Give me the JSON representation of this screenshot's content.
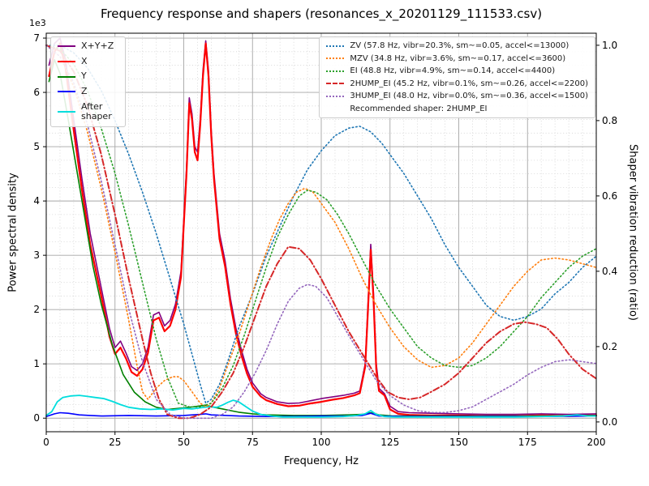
{
  "axes": {
    "x": {
      "label": "Frequency, Hz",
      "min": 0,
      "max": 200,
      "ticks": [
        0,
        25,
        50,
        75,
        100,
        125,
        150,
        175,
        200
      ],
      "minor_step": 5
    },
    "y_left": {
      "label": "Power spectral density",
      "offset_text": "1e3",
      "ticks": [
        0,
        1,
        2,
        3,
        4,
        5,
        6,
        7
      ],
      "range": [
        -0.25,
        7.09
      ]
    },
    "y_right": {
      "label": "Shaper vibration reduction (ratio)",
      "ticks": [
        "0.0",
        "0.2",
        "0.4",
        "0.6",
        "0.8",
        "1.0"
      ],
      "range": [
        -0.026,
        1.032
      ]
    }
  },
  "grid": {
    "major_color": "#a6a6a6",
    "minor_color": "#d2d2d2"
  },
  "chart_data": {
    "type": "line",
    "title": "Frequency response and shapers (resonances_x_20201129_111533.csv)",
    "xlabel": "Frequency, Hz",
    "ylabel": "Power spectral density",
    "ylabel_right": "Shaper vibration reduction (ratio)",
    "y_left_unit": "1e3",
    "x_range": [
      0,
      200
    ],
    "y_left_range": [
      0,
      7
    ],
    "y_right_range": [
      0,
      1
    ],
    "recommended": "Recommended shaper: 2HUMP_EI",
    "legend_position": {
      "data": "upper left",
      "shapers": "upper right"
    },
    "series": [
      {
        "label": "X+Y+Z",
        "color": "#800080",
        "style": "solid",
        "width": 1.6,
        "axis": "left",
        "x": [
          1,
          3,
          5,
          7,
          10,
          13,
          16,
          20,
          23,
          25,
          27,
          29,
          31,
          33,
          35,
          37,
          39,
          41,
          43,
          45,
          47,
          49,
          51,
          52,
          53,
          54,
          55,
          56,
          57,
          58,
          59,
          60,
          61,
          63,
          65,
          67,
          69,
          71,
          73,
          75,
          78,
          80,
          84,
          88,
          92,
          96,
          100,
          104,
          108,
          112,
          114,
          116,
          117,
          118,
          119,
          120,
          121,
          123,
          125,
          128,
          132,
          140,
          150,
          160,
          170,
          180,
          190,
          200
        ],
        "y": [
          6.5,
          6.9,
          7.0,
          6.6,
          5.5,
          4.4,
          3.4,
          2.4,
          1.65,
          1.3,
          1.42,
          1.2,
          0.95,
          0.88,
          1.0,
          1.3,
          1.9,
          1.95,
          1.7,
          1.8,
          2.1,
          2.7,
          4.6,
          5.9,
          5.6,
          5.0,
          4.9,
          5.5,
          6.4,
          6.95,
          6.4,
          5.3,
          4.5,
          3.4,
          2.9,
          2.2,
          1.65,
          1.25,
          0.9,
          0.65,
          0.45,
          0.38,
          0.3,
          0.27,
          0.28,
          0.32,
          0.36,
          0.39,
          0.42,
          0.46,
          0.5,
          1.0,
          2.1,
          3.2,
          2.3,
          1.0,
          0.55,
          0.45,
          0.22,
          0.12,
          0.1,
          0.09,
          0.08,
          0.07,
          0.07,
          0.08,
          0.07,
          0.08
        ]
      },
      {
        "label": "X",
        "color": "#ff0000",
        "style": "solid",
        "width": 2.2,
        "axis": "left",
        "x": [
          1,
          3,
          5,
          7,
          10,
          13,
          16,
          20,
          23,
          25,
          27,
          29,
          31,
          33,
          35,
          37,
          39,
          41,
          43,
          45,
          47,
          49,
          51,
          52,
          53,
          54,
          55,
          56,
          57,
          58,
          59,
          60,
          61,
          63,
          65,
          67,
          69,
          71,
          73,
          75,
          78,
          80,
          84,
          88,
          92,
          96,
          100,
          104,
          108,
          112,
          114,
          116,
          117,
          118,
          119,
          120,
          121,
          123,
          125,
          128,
          132,
          140,
          150,
          160,
          170,
          180,
          190,
          200
        ],
        "y": [
          6.3,
          6.75,
          6.9,
          6.45,
          5.3,
          4.2,
          3.2,
          2.25,
          1.5,
          1.18,
          1.3,
          1.1,
          0.85,
          0.78,
          0.9,
          1.2,
          1.8,
          1.85,
          1.6,
          1.7,
          2.0,
          2.6,
          4.5,
          5.8,
          5.5,
          4.9,
          4.75,
          5.4,
          6.3,
          6.9,
          6.3,
          5.2,
          4.4,
          3.3,
          2.8,
          2.1,
          1.55,
          1.15,
          0.82,
          0.58,
          0.4,
          0.33,
          0.26,
          0.22,
          0.23,
          0.27,
          0.3,
          0.34,
          0.37,
          0.42,
          0.46,
          0.95,
          2.0,
          3.1,
          2.2,
          0.9,
          0.5,
          0.42,
          0.16,
          0.08,
          0.06,
          0.05,
          0.05,
          0.04,
          0.04,
          0.05,
          0.04,
          0.05
        ]
      },
      {
        "label": "Y",
        "color": "#008000",
        "style": "solid",
        "width": 1.6,
        "axis": "left",
        "x": [
          1,
          3,
          5,
          8,
          11,
          14,
          17,
          20,
          24,
          28,
          32,
          36,
          40,
          44,
          48,
          52,
          55,
          58,
          61,
          64,
          67,
          70,
          75,
          80,
          90,
          100,
          110,
          115,
          118,
          121,
          126,
          135,
          150,
          165,
          180,
          200
        ],
        "y": [
          6.2,
          6.6,
          6.35,
          5.5,
          4.6,
          3.7,
          2.8,
          2.1,
          1.35,
          0.8,
          0.48,
          0.3,
          0.2,
          0.16,
          0.18,
          0.2,
          0.22,
          0.24,
          0.2,
          0.17,
          0.14,
          0.11,
          0.08,
          0.06,
          0.05,
          0.05,
          0.06,
          0.07,
          0.1,
          0.06,
          0.04,
          0.04,
          0.04,
          0.04,
          0.04,
          0.05
        ]
      },
      {
        "label": "Z",
        "color": "#0000ff",
        "style": "solid",
        "width": 1.6,
        "axis": "left",
        "x": [
          0,
          3,
          5,
          8,
          12,
          16,
          20,
          30,
          40,
          50,
          56,
          58,
          60,
          70,
          80,
          90,
          100,
          110,
          115,
          118,
          121,
          130,
          145,
          160,
          180,
          200
        ],
        "y": [
          0.03,
          0.08,
          0.1,
          0.09,
          0.06,
          0.05,
          0.04,
          0.05,
          0.04,
          0.05,
          0.07,
          0.08,
          0.06,
          0.04,
          0.03,
          0.03,
          0.04,
          0.04,
          0.05,
          0.09,
          0.04,
          0.03,
          0.03,
          0.03,
          0.03,
          0.04
        ]
      },
      {
        "label": "After shaper",
        "color": "#00dddd",
        "style": "solid",
        "width": 1.8,
        "axis": "left",
        "x": [
          0,
          2,
          4,
          6,
          9,
          12,
          15,
          18,
          21,
          24,
          27,
          30,
          34,
          38,
          42,
          46,
          50,
          53,
          56,
          59,
          62,
          64,
          66,
          68,
          70,
          72,
          75,
          78,
          82,
          86,
          92,
          100,
          108,
          113,
          116,
          118,
          120,
          123,
          127,
          132,
          140,
          150,
          160,
          170,
          180,
          188,
          193,
          197,
          200
        ],
        "y": [
          0.05,
          0.12,
          0.3,
          0.38,
          0.41,
          0.42,
          0.4,
          0.38,
          0.36,
          0.31,
          0.25,
          0.2,
          0.17,
          0.16,
          0.17,
          0.15,
          0.18,
          0.17,
          0.19,
          0.21,
          0.2,
          0.24,
          0.29,
          0.33,
          0.3,
          0.23,
          0.13,
          0.07,
          0.04,
          0.02,
          0.02,
          0.02,
          0.03,
          0.05,
          0.08,
          0.14,
          0.07,
          0.03,
          0.02,
          0.02,
          0.02,
          0.02,
          0.02,
          0.02,
          0.03,
          0.04,
          0.06,
          0.04,
          0.04
        ]
      },
      {
        "label": "ZV (57.8 Hz, vibr=20.3%, sm~=0.05, accel<=13000)",
        "color": "#1f77b4",
        "style": "dotted",
        "width": 1.6,
        "axis": "right",
        "x": [
          0,
          5,
          10,
          15,
          20,
          25,
          30,
          35,
          40,
          45,
          50,
          53,
          56,
          58,
          60,
          63,
          66,
          70,
          75,
          80,
          85,
          90,
          95,
          100,
          105,
          110,
          114,
          118,
          122,
          126,
          130,
          135,
          140,
          145,
          150,
          155,
          160,
          165,
          170,
          175,
          180,
          185,
          190,
          195,
          200
        ],
        "y": [
          1.0,
          1.0,
          0.98,
          0.94,
          0.88,
          0.8,
          0.71,
          0.61,
          0.5,
          0.38,
          0.26,
          0.18,
          0.1,
          0.05,
          0.06,
          0.1,
          0.16,
          0.25,
          0.34,
          0.44,
          0.52,
          0.6,
          0.67,
          0.72,
          0.76,
          0.78,
          0.785,
          0.77,
          0.74,
          0.7,
          0.66,
          0.6,
          0.54,
          0.47,
          0.41,
          0.36,
          0.31,
          0.28,
          0.27,
          0.28,
          0.3,
          0.34,
          0.37,
          0.41,
          0.44
        ]
      },
      {
        "label": "MZV (34.8 Hz, vibr=3.6%, sm~=0.17, accel<=3600)",
        "color": "#ff7f0e",
        "style": "dotted",
        "width": 1.6,
        "axis": "right",
        "x": [
          0,
          5,
          10,
          15,
          20,
          25,
          30,
          33,
          35,
          37,
          40,
          43,
          46,
          48,
          50,
          53,
          56,
          58,
          60,
          63,
          66,
          70,
          74,
          78,
          82,
          85,
          88,
          91,
          94,
          97,
          100,
          105,
          110,
          115,
          120,
          125,
          130,
          135,
          140,
          145,
          150,
          155,
          160,
          165,
          170,
          175,
          180,
          185,
          190,
          195,
          200
        ],
        "y": [
          1.0,
          0.97,
          0.89,
          0.77,
          0.62,
          0.45,
          0.27,
          0.15,
          0.08,
          0.06,
          0.09,
          0.11,
          0.12,
          0.12,
          0.11,
          0.08,
          0.05,
          0.04,
          0.05,
          0.09,
          0.15,
          0.23,
          0.32,
          0.41,
          0.49,
          0.54,
          0.58,
          0.61,
          0.62,
          0.61,
          0.58,
          0.53,
          0.46,
          0.38,
          0.31,
          0.25,
          0.2,
          0.165,
          0.145,
          0.15,
          0.17,
          0.21,
          0.26,
          0.31,
          0.36,
          0.4,
          0.43,
          0.435,
          0.43,
          0.42,
          0.41
        ]
      },
      {
        "label": "EI (48.8 Hz, vibr=4.9%, sm~=0.14, accel<=4400)",
        "color": "#2ca02c",
        "style": "dotted",
        "width": 1.6,
        "axis": "right",
        "x": [
          0,
          5,
          10,
          15,
          20,
          25,
          30,
          35,
          40,
          44,
          48,
          52,
          56,
          60,
          64,
          68,
          72,
          76,
          80,
          84,
          88,
          92,
          95,
          98,
          102,
          106,
          110,
          115,
          120,
          125,
          130,
          135,
          140,
          145,
          150,
          155,
          160,
          165,
          170,
          175,
          180,
          185,
          190,
          195,
          200
        ],
        "y": [
          1.0,
          0.99,
          0.95,
          0.88,
          0.78,
          0.66,
          0.52,
          0.37,
          0.22,
          0.12,
          0.05,
          0.04,
          0.04,
          0.05,
          0.09,
          0.15,
          0.23,
          0.32,
          0.41,
          0.49,
          0.55,
          0.6,
          0.615,
          0.61,
          0.59,
          0.55,
          0.5,
          0.43,
          0.36,
          0.3,
          0.25,
          0.2,
          0.17,
          0.15,
          0.145,
          0.15,
          0.17,
          0.2,
          0.24,
          0.28,
          0.33,
          0.37,
          0.41,
          0.44,
          0.46
        ]
      },
      {
        "label": "2HUMP_EI (45.2 Hz, vibr=0.1%, sm~=0.26, accel<=2200)",
        "color": "#d62728",
        "style": "dashdot",
        "width": 2.0,
        "axis": "right",
        "x": [
          0,
          5,
          10,
          15,
          20,
          25,
          30,
          35,
          38,
          41,
          44,
          48,
          52,
          56,
          60,
          64,
          68,
          72,
          76,
          80,
          84,
          88,
          92,
          96,
          100,
          105,
          110,
          115,
          120,
          124,
          128,
          132,
          136,
          140,
          145,
          150,
          155,
          160,
          165,
          170,
          174,
          178,
          182,
          186,
          190,
          195,
          200
        ],
        "y": [
          1.0,
          0.985,
          0.93,
          0.84,
          0.71,
          0.55,
          0.38,
          0.22,
          0.13,
          0.06,
          0.02,
          0.01,
          0.01,
          0.02,
          0.04,
          0.08,
          0.13,
          0.2,
          0.28,
          0.36,
          0.42,
          0.465,
          0.46,
          0.43,
          0.38,
          0.31,
          0.24,
          0.18,
          0.12,
          0.08,
          0.065,
          0.06,
          0.065,
          0.08,
          0.1,
          0.13,
          0.17,
          0.21,
          0.24,
          0.26,
          0.265,
          0.26,
          0.25,
          0.22,
          0.18,
          0.14,
          0.115
        ]
      },
      {
        "label": "3HUMP_EI (48.0 Hz, vibr=0.0%, sm~=0.36, accel<=1500)",
        "color": "#9467bd",
        "style": "dotted",
        "width": 1.6,
        "axis": "right",
        "x": [
          0,
          5,
          10,
          15,
          20,
          25,
          30,
          35,
          40,
          45,
          50,
          55,
          60,
          64,
          68,
          72,
          76,
          80,
          84,
          88,
          92,
          95,
          98,
          102,
          106,
          110,
          115,
          120,
          125,
          130,
          135,
          140,
          145,
          150,
          155,
          160,
          165,
          170,
          175,
          180,
          185,
          190,
          195,
          200
        ],
        "y": [
          1.0,
          0.97,
          0.9,
          0.79,
          0.64,
          0.47,
          0.3,
          0.16,
          0.06,
          0.02,
          0.01,
          0.01,
          0.01,
          0.02,
          0.04,
          0.08,
          0.13,
          0.19,
          0.26,
          0.32,
          0.355,
          0.365,
          0.36,
          0.33,
          0.28,
          0.23,
          0.17,
          0.11,
          0.07,
          0.045,
          0.03,
          0.025,
          0.025,
          0.03,
          0.04,
          0.06,
          0.08,
          0.1,
          0.125,
          0.145,
          0.16,
          0.165,
          0.16,
          0.155
        ]
      }
    ]
  }
}
